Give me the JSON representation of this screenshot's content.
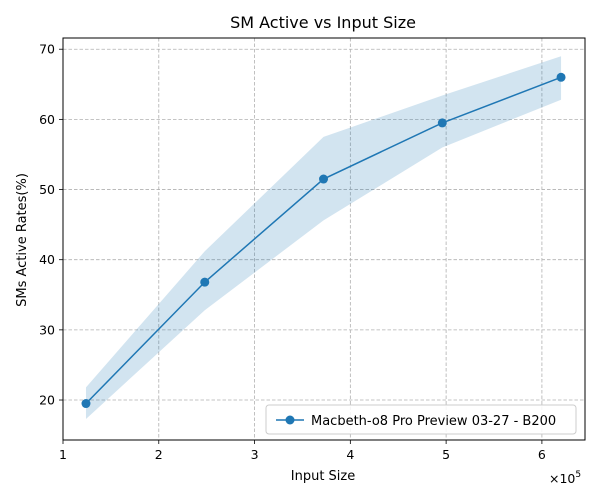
{
  "chart_data": {
    "type": "line",
    "title": "SM Active vs Input Size",
    "xlabel": "Input Size",
    "ylabel": "SMs Active Rates(%)",
    "x_scale_label": "×10",
    "x_scale_exponent": "5",
    "xlim": [
      1.0,
      6.45
    ],
    "ylim": [
      14.3,
      71.6
    ],
    "x_ticks": [
      1,
      2,
      3,
      4,
      5,
      6
    ],
    "x_tick_labels": [
      "1",
      "2",
      "3",
      "4",
      "5",
      "6"
    ],
    "y_ticks": [
      20,
      30,
      40,
      50,
      60,
      70
    ],
    "y_tick_labels": [
      "20",
      "30",
      "40",
      "50",
      "60",
      "70"
    ],
    "grid": true,
    "legend_position": "lower-right",
    "series": [
      {
        "name": "Macbeth-o8 Pro Preview 03-27 - B200",
        "color": "#1f77b4",
        "x": [
          1.24,
          2.48,
          3.72,
          4.96,
          6.2
        ],
        "y": [
          19.5,
          36.8,
          51.5,
          59.5,
          66.0
        ],
        "band_upper": [
          21.8,
          41.2,
          57.5,
          63.4,
          69.0
        ],
        "band_lower": [
          17.3,
          32.8,
          45.6,
          56.0,
          62.8
        ],
        "band_color": "#1f77b4"
      }
    ]
  }
}
